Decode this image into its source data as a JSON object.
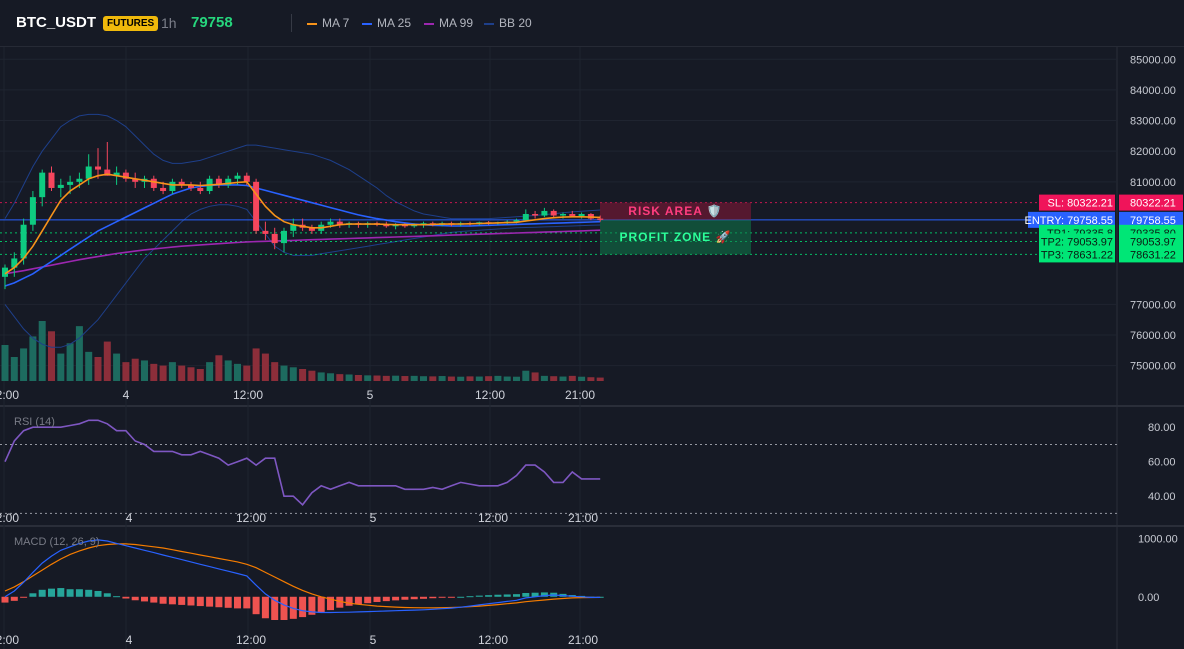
{
  "header": {
    "symbol": "BTC_USDT",
    "badge": "FUTURES",
    "interval": "1h",
    "price": "79758",
    "legend": [
      {
        "label": "MA 7",
        "color": "#f7931a"
      },
      {
        "label": "MA 25",
        "color": "#2962ff"
      },
      {
        "label": "MA 99",
        "color": "#9c27b0"
      },
      {
        "label": "BB 20",
        "color": "#1e3f8a"
      }
    ]
  },
  "colors": {
    "up": "#26a69a",
    "up_bright": "#0ecb81",
    "down": "#f6465d",
    "vol_up": "#1d6b5f",
    "vol_down": "#8c2e3a",
    "ma7": "#f7931a",
    "ma25": "#2962ff",
    "ma99": "#9c27b0",
    "bb": "#1e3f8a",
    "rsi": "#7e57c2",
    "macd": "#2962ff",
    "signal": "#f57c00",
    "hist_up": "#26a69a",
    "hist_down": "#ef5350"
  },
  "price_axis": {
    "ticks": [
      "85000.00",
      "84000.00",
      "83000.00",
      "82000.00",
      "81000.00",
      "77000.00",
      "76000.00",
      "75000.00"
    ]
  },
  "time_axis": {
    "labels": [
      "12:00",
      "4",
      "12:00",
      "5",
      "12:00",
      "21:00"
    ]
  },
  "levels": [
    {
      "name": "sl",
      "label": "SL: 80322.21",
      "value": "80322.21",
      "price": 80322.21,
      "color": "#f0145a",
      "line": "dotted"
    },
    {
      "name": "entry",
      "label": "ENTRY: 79758.55",
      "value": "79758.55",
      "price": 79758.55,
      "color": "#2962ff",
      "line": "solid"
    },
    {
      "name": "tp1",
      "label": "TP1: 79335.8",
      "value": "79335.80",
      "price": 79335.8,
      "color": "#00e676",
      "line": "dotted"
    },
    {
      "name": "tp2",
      "label": "TP2: 79053.97",
      "value": "79053.97",
      "price": 79053.97,
      "color": "#00e676",
      "line": "dotted"
    },
    {
      "name": "tp3",
      "label": "TP3: 78631.22",
      "value": "78631.22",
      "price": 78631.22,
      "color": "#00e676",
      "line": "dotted"
    }
  ],
  "zones": {
    "risk_label": "RISK AREA 🛡️",
    "profit_label": "PROFIT ZONE 🚀"
  },
  "rsi_pane": {
    "label": "RSI (14)",
    "ticks": [
      "80.00",
      "60.00",
      "40.00"
    ],
    "overbought": 70,
    "oversold": 30
  },
  "macd_pane": {
    "label": "MACD (12, 26, 9)",
    "ticks": [
      "1000.00",
      "0.00"
    ]
  },
  "chart_data": {
    "type": "candlestick",
    "symbol": "BTC_USDT",
    "interval": "1h",
    "ylim": [
      74500,
      85400
    ],
    "candles": [
      {
        "o": 77900,
        "h": 78300,
        "l": 77500,
        "c": 78200
      },
      {
        "o": 78200,
        "h": 78700,
        "l": 77900,
        "c": 78500
      },
      {
        "o": 78500,
        "h": 79800,
        "l": 78300,
        "c": 79600
      },
      {
        "o": 79600,
        "h": 80700,
        "l": 79400,
        "c": 80500
      },
      {
        "o": 80500,
        "h": 81400,
        "l": 80200,
        "c": 81300
      },
      {
        "o": 81300,
        "h": 81500,
        "l": 80700,
        "c": 80800
      },
      {
        "o": 80800,
        "h": 81100,
        "l": 80500,
        "c": 80900
      },
      {
        "o": 80900,
        "h": 81200,
        "l": 80600,
        "c": 81000
      },
      {
        "o": 81000,
        "h": 81300,
        "l": 80800,
        "c": 81100
      },
      {
        "o": 81100,
        "h": 81900,
        "l": 80900,
        "c": 81500
      },
      {
        "o": 81500,
        "h": 82100,
        "l": 81100,
        "c": 81400
      },
      {
        "o": 81400,
        "h": 82300,
        "l": 81200,
        "c": 81200
      },
      {
        "o": 81200,
        "h": 81500,
        "l": 80900,
        "c": 81300
      },
      {
        "o": 81300,
        "h": 81400,
        "l": 81000,
        "c": 81100
      },
      {
        "o": 81100,
        "h": 81300,
        "l": 80800,
        "c": 81000
      },
      {
        "o": 81000,
        "h": 81200,
        "l": 80800,
        "c": 81100
      },
      {
        "o": 81100,
        "h": 81200,
        "l": 80700,
        "c": 80800
      },
      {
        "o": 80800,
        "h": 81000,
        "l": 80600,
        "c": 80700
      },
      {
        "o": 80700,
        "h": 81100,
        "l": 80600,
        "c": 81000
      },
      {
        "o": 81000,
        "h": 81100,
        "l": 80800,
        "c": 80900
      },
      {
        "o": 80900,
        "h": 81000,
        "l": 80700,
        "c": 80800
      },
      {
        "o": 80800,
        "h": 81000,
        "l": 80600,
        "c": 80700
      },
      {
        "o": 80700,
        "h": 81200,
        "l": 80600,
        "c": 81100
      },
      {
        "o": 81100,
        "h": 81200,
        "l": 80800,
        "c": 80900
      },
      {
        "o": 80900,
        "h": 81200,
        "l": 80800,
        "c": 81100
      },
      {
        "o": 81100,
        "h": 81300,
        "l": 80900,
        "c": 81200
      },
      {
        "o": 81200,
        "h": 81300,
        "l": 80900,
        "c": 81000
      },
      {
        "o": 81000,
        "h": 81100,
        "l": 79300,
        "c": 79400
      },
      {
        "o": 79400,
        "h": 79700,
        "l": 79100,
        "c": 79300
      },
      {
        "o": 79300,
        "h": 79500,
        "l": 78800,
        "c": 79000
      },
      {
        "o": 79000,
        "h": 79500,
        "l": 78700,
        "c": 79400
      },
      {
        "o": 79400,
        "h": 79800,
        "l": 79200,
        "c": 79600
      },
      {
        "o": 79600,
        "h": 79800,
        "l": 79400,
        "c": 79500
      },
      {
        "o": 79500,
        "h": 79600,
        "l": 79300,
        "c": 79400
      },
      {
        "o": 79400,
        "h": 79700,
        "l": 79300,
        "c": 79600
      },
      {
        "o": 79600,
        "h": 79800,
        "l": 79500,
        "c": 79700
      },
      {
        "o": 79700,
        "h": 79800,
        "l": 79500,
        "c": 79600
      },
      {
        "o": 79600,
        "h": 79700,
        "l": 79500,
        "c": 79650
      },
      {
        "o": 79650,
        "h": 79700,
        "l": 79500,
        "c": 79600
      },
      {
        "o": 79600,
        "h": 79700,
        "l": 79500,
        "c": 79650
      },
      {
        "o": 79650,
        "h": 79700,
        "l": 79550,
        "c": 79600
      },
      {
        "o": 79600,
        "h": 79700,
        "l": 79500,
        "c": 79550
      },
      {
        "o": 79550,
        "h": 79650,
        "l": 79450,
        "c": 79600
      },
      {
        "o": 79600,
        "h": 79650,
        "l": 79500,
        "c": 79550
      },
      {
        "o": 79550,
        "h": 79650,
        "l": 79500,
        "c": 79600
      },
      {
        "o": 79600,
        "h": 79700,
        "l": 79500,
        "c": 79650
      },
      {
        "o": 79650,
        "h": 79700,
        "l": 79550,
        "c": 79600
      },
      {
        "o": 79600,
        "h": 79700,
        "l": 79550,
        "c": 79650
      },
      {
        "o": 79650,
        "h": 79700,
        "l": 79550,
        "c": 79600
      },
      {
        "o": 79600,
        "h": 79700,
        "l": 79550,
        "c": 79650
      },
      {
        "o": 79650,
        "h": 79700,
        "l": 79580,
        "c": 79620
      },
      {
        "o": 79620,
        "h": 79700,
        "l": 79580,
        "c": 79680
      },
      {
        "o": 79680,
        "h": 79720,
        "l": 79600,
        "c": 79650
      },
      {
        "o": 79650,
        "h": 79700,
        "l": 79600,
        "c": 79680
      },
      {
        "o": 79680,
        "h": 79750,
        "l": 79620,
        "c": 79700
      },
      {
        "o": 79700,
        "h": 79800,
        "l": 79650,
        "c": 79750
      },
      {
        "o": 79750,
        "h": 80100,
        "l": 79700,
        "c": 79950
      },
      {
        "o": 79950,
        "h": 80050,
        "l": 79800,
        "c": 79900
      },
      {
        "o": 79900,
        "h": 80150,
        "l": 79850,
        "c": 80050
      },
      {
        "o": 80050,
        "h": 80100,
        "l": 79850,
        "c": 79900
      },
      {
        "o": 79900,
        "h": 80000,
        "l": 79800,
        "c": 79950
      },
      {
        "o": 79950,
        "h": 80050,
        "l": 79850,
        "c": 79880
      },
      {
        "o": 79880,
        "h": 80000,
        "l": 79800,
        "c": 79950
      },
      {
        "o": 79950,
        "h": 79980,
        "l": 79750,
        "c": 79800
      },
      {
        "o": 79800,
        "h": 79900,
        "l": 79700,
        "c": 79760
      }
    ],
    "volume": [
      2100,
      1400,
      1900,
      2600,
      3500,
      2900,
      1600,
      2200,
      3200,
      1700,
      1400,
      2300,
      1600,
      1100,
      1300,
      1200,
      1000,
      900,
      1100,
      900,
      800,
      700,
      1100,
      1500,
      1200,
      1000,
      900,
      1900,
      1600,
      1100,
      900,
      800,
      700,
      600,
      500,
      450,
      400,
      380,
      350,
      330,
      320,
      300,
      310,
      290,
      300,
      280,
      270,
      290,
      260,
      250,
      270,
      260,
      280,
      300,
      260,
      250,
      600,
      500,
      300,
      280,
      260,
      300,
      250,
      220,
      200
    ],
    "ma7": [
      78000,
      78200,
      78500,
      78900,
      79400,
      79900,
      80400,
      80700,
      80900,
      81100,
      81200,
      81250,
      81200,
      81150,
      81100,
      81050,
      81000,
      80950,
      80900,
      80900,
      80900,
      80880,
      80900,
      80920,
      80950,
      80980,
      81000,
      80600,
      80200,
      79900,
      79700,
      79600,
      79550,
      79500,
      79500,
      79550,
      79600,
      79620,
      79620,
      79620,
      79620,
      79610,
      79600,
      79600,
      79600,
      79600,
      79610,
      79620,
      79620,
      79625,
      79630,
      79640,
      79650,
      79660,
      79670,
      79680,
      79720,
      79760,
      79800,
      79830,
      79850,
      79860,
      79860,
      79850,
      79840
    ],
    "ma25": [
      77600,
      77700,
      77850,
      78000,
      78200,
      78400,
      78600,
      78800,
      79000,
      79200,
      79400,
      79550,
      79700,
      79850,
      80000,
      80150,
      80300,
      80450,
      80600,
      80700,
      80800,
      80850,
      80880,
      80900,
      80900,
      80900,
      80880,
      80800,
      80720,
      80640,
      80560,
      80480,
      80400,
      80320,
      80240,
      80160,
      80080,
      80000,
      79920,
      79860,
      79800,
      79750,
      79700,
      79660,
      79620,
      79600,
      79580,
      79570,
      79560,
      79560,
      79560,
      79570,
      79580,
      79590,
      79600,
      79610,
      79620,
      79630,
      79640,
      79650,
      79660,
      79670,
      79680,
      79690,
      79700
    ],
    "ma99": [
      78000,
      78050,
      78100,
      78160,
      78220,
      78280,
      78340,
      78400,
      78460,
      78510,
      78560,
      78610,
      78660,
      78700,
      78740,
      78780,
      78810,
      78840,
      78870,
      78900,
      78920,
      78940,
      78960,
      78980,
      79000,
      79020,
      79040,
      79050,
      79060,
      79070,
      79080,
      79090,
      79100,
      79110,
      79120,
      79130,
      79140,
      79150,
      79160,
      79170,
      79180,
      79190,
      79200,
      79210,
      79220,
      79230,
      79240,
      79250,
      79260,
      79270,
      79280,
      79290,
      79300,
      79310,
      79320,
      79330,
      79340,
      79350,
      79360,
      79370,
      79380,
      79390,
      79400,
      79410,
      79420
    ],
    "bb_upper": [
      79800,
      80300,
      80900,
      81500,
      82000,
      82400,
      82800,
      83000,
      83150,
      83200,
      83200,
      83150,
      83000,
      82800,
      82500,
      82200,
      81900,
      81700,
      81600,
      81600,
      81650,
      81700,
      81800,
      81900,
      82000,
      82100,
      82200,
      82200,
      82150,
      82100,
      82050,
      82000,
      81950,
      81900,
      81800,
      81700,
      81550,
      81400,
      81200,
      81000,
      80800,
      80550,
      80350,
      80200,
      80050,
      79950,
      79900,
      79850,
      79800,
      79800,
      79800,
      79800,
      79800,
      79820,
      79840,
      79860,
      79880,
      79900,
      79930,
      79960,
      79990,
      80020,
      80040,
      80060,
      80080
    ],
    "bb_lower": [
      77000,
      76600,
      76200,
      75900,
      75700,
      75600,
      75600,
      75700,
      75900,
      76200,
      76500,
      76900,
      77300,
      77700,
      78100,
      78500,
      78800,
      79100,
      79400,
      79700,
      79950,
      80100,
      80200,
      80250,
      80250,
      80200,
      80100,
      79700,
      79300,
      78900,
      78700,
      78600,
      78600,
      78600,
      78650,
      78700,
      78750,
      78800,
      78850,
      78900,
      78950,
      79000,
      79050,
      79100,
      79150,
      79200,
      79250,
      79300,
      79350,
      79380,
      79400,
      79420,
      79440,
      79460,
      79480,
      79500,
      79510,
      79520,
      79530,
      79540,
      79550,
      79560,
      79570,
      79580,
      79590
    ],
    "rsi": [
      60,
      72,
      78,
      80,
      80,
      80,
      80,
      81,
      82,
      84,
      84,
      82,
      78,
      78,
      72,
      70,
      66,
      66,
      66,
      64,
      64,
      66,
      64,
      62,
      58,
      60,
      62,
      58,
      62,
      62,
      40,
      40,
      35,
      42,
      46,
      44,
      46,
      48,
      46,
      46,
      46,
      46,
      46,
      44,
      44,
      44,
      45,
      44,
      46,
      48,
      47,
      46,
      46,
      46,
      48,
      52,
      58,
      58,
      54,
      48,
      48,
      54,
      50,
      50,
      50
    ],
    "rsi_ylim": [
      25,
      90
    ],
    "macd": [
      0,
      100,
      250,
      420,
      580,
      700,
      800,
      860,
      920,
      960,
      980,
      960,
      920,
      880,
      840,
      800,
      760,
      720,
      680,
      640,
      600,
      560,
      520,
      480,
      440,
      400,
      360,
      200,
      50,
      -60,
      -140,
      -200,
      -240,
      -260,
      -270,
      -270,
      -268,
      -265,
      -260,
      -255,
      -250,
      -245,
      -240,
      -235,
      -230,
      -225,
      -215,
      -205,
      -195,
      -180,
      -160,
      -140,
      -120,
      -100,
      -80,
      -60,
      -20,
      0,
      20,
      30,
      20,
      10,
      0,
      -10,
      -10
    ],
    "signal": [
      100,
      170,
      260,
      360,
      460,
      560,
      650,
      730,
      790,
      840,
      880,
      900,
      910,
      910,
      900,
      880,
      860,
      840,
      810,
      780,
      750,
      720,
      690,
      660,
      630,
      600,
      560,
      500,
      420,
      340,
      260,
      180,
      110,
      50,
      0,
      -40,
      -80,
      -110,
      -130,
      -145,
      -160,
      -170,
      -178,
      -184,
      -188,
      -190,
      -190,
      -188,
      -185,
      -180,
      -170,
      -160,
      -148,
      -135,
      -120,
      -105,
      -85,
      -70,
      -55,
      -40,
      -30,
      -20,
      -15,
      -12,
      -10
    ],
    "macd_ylim": [
      -400,
      1150
    ],
    "levels": {
      "SL": 80322.21,
      "ENTRY": 79758.55,
      "TP1": 79335.8,
      "TP2": 79053.97,
      "TP3": 78631.22
    }
  }
}
